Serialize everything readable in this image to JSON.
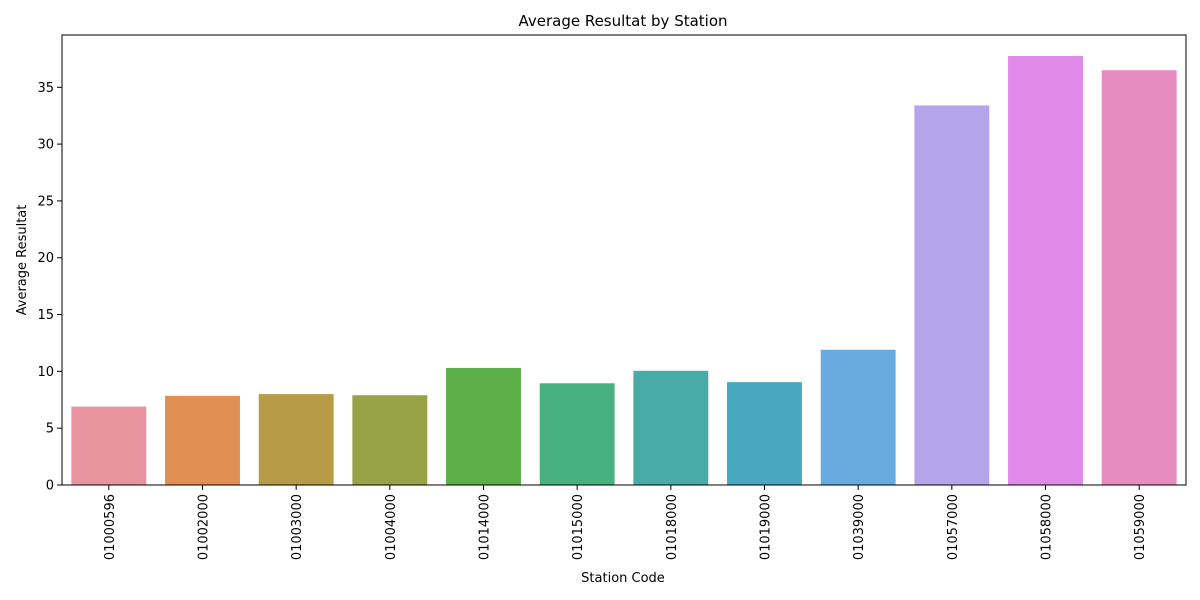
{
  "chart_data": {
    "type": "bar",
    "title": "Average Resultat by Station",
    "xlabel": "Station Code",
    "ylabel": "Average Resultat",
    "categories": [
      "01000596",
      "01002000",
      "01003000",
      "01004000",
      "01014000",
      "01015000",
      "01018000",
      "01019000",
      "01039000",
      "01057000",
      "01058000",
      "01059000"
    ],
    "values": [
      6.9,
      7.85,
      8.0,
      7.9,
      10.3,
      8.95,
      10.05,
      9.05,
      11.9,
      33.4,
      37.75,
      36.5
    ],
    "colors": [
      "#e8949f",
      "#e18f52",
      "#b89b47",
      "#98a246",
      "#5caf48",
      "#49b17f",
      "#49aba6",
      "#4aa7c0",
      "#68abe0",
      "#b4a5eb",
      "#df89e9",
      "#e68cc1"
    ],
    "ylim": [
      0,
      39.6
    ],
    "yticks": [
      0,
      5,
      10,
      15,
      20,
      25,
      30,
      35
    ],
    "grid": false,
    "legend": "none"
  }
}
